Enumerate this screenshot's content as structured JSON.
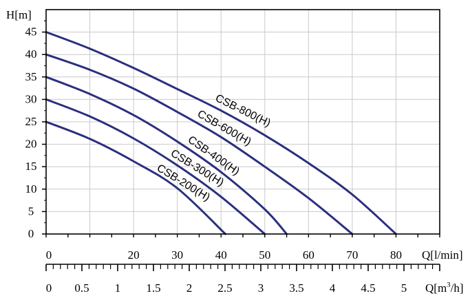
{
  "chart_data": {
    "type": "line",
    "ylabel": "H[m]",
    "xlabel_flow_lpm": "Q[l/min]",
    "xlabel_flow_m3h": "Q[m³/h]",
    "xlabel_flow_m3h_parts": {
      "prefix": "Q[m",
      "sup": "3",
      "suffix": "/h]"
    },
    "ylim": [
      0,
      50
    ],
    "xlim": [
      0,
      90
    ],
    "x_unit": "l/min",
    "y_ticks": [
      0,
      5,
      10,
      15,
      20,
      25,
      30,
      35,
      40,
      45
    ],
    "x_ticks_lpm": [
      "0",
      "20",
      "30",
      "40",
      "50",
      "60",
      "70",
      "80"
    ],
    "x_ticks_lpm_values": [
      0,
      20,
      30,
      40,
      50,
      60,
      70,
      80
    ],
    "x_ticks_m3h": [
      "0",
      "0.5",
      "1",
      "1.5",
      "2",
      "2.5",
      "3",
      "3.5",
      "4",
      "4.5",
      "5"
    ],
    "x_ticks_m3h_values": [
      0,
      0.5,
      1,
      1.5,
      2,
      2.5,
      3,
      3.5,
      4,
      4.5,
      5
    ],
    "grid": true,
    "series_color": "#2b2f7e",
    "series": [
      {
        "name": "CSB-800(H)",
        "x": [
          0,
          10,
          20,
          30,
          40,
          50,
          60,
          70,
          80
        ],
        "y": [
          45,
          41.3,
          37,
          32.3,
          27.5,
          22,
          15.8,
          8.8,
          0
        ]
      },
      {
        "name": "CSB-600(H)",
        "x": [
          0,
          10,
          20,
          30,
          40,
          50,
          60,
          70
        ],
        "y": [
          40,
          36.6,
          32.4,
          27.2,
          21.6,
          15,
          8,
          0
        ]
      },
      {
        "name": "CSB-400(H)",
        "x": [
          0,
          10,
          20,
          30,
          40,
          50,
          55
        ],
        "y": [
          35,
          31.2,
          26.5,
          20.6,
          13.8,
          5.5,
          0
        ]
      },
      {
        "name": "CSB-300(H)",
        "x": [
          0,
          10,
          20,
          30,
          40,
          50
        ],
        "y": [
          30,
          26.2,
          21.3,
          15.3,
          8.3,
          0
        ]
      },
      {
        "name": "CSB-200(H)",
        "x": [
          0,
          10,
          20,
          30,
          41
        ],
        "y": [
          25,
          21.2,
          16.2,
          10.2,
          0
        ]
      }
    ]
  }
}
